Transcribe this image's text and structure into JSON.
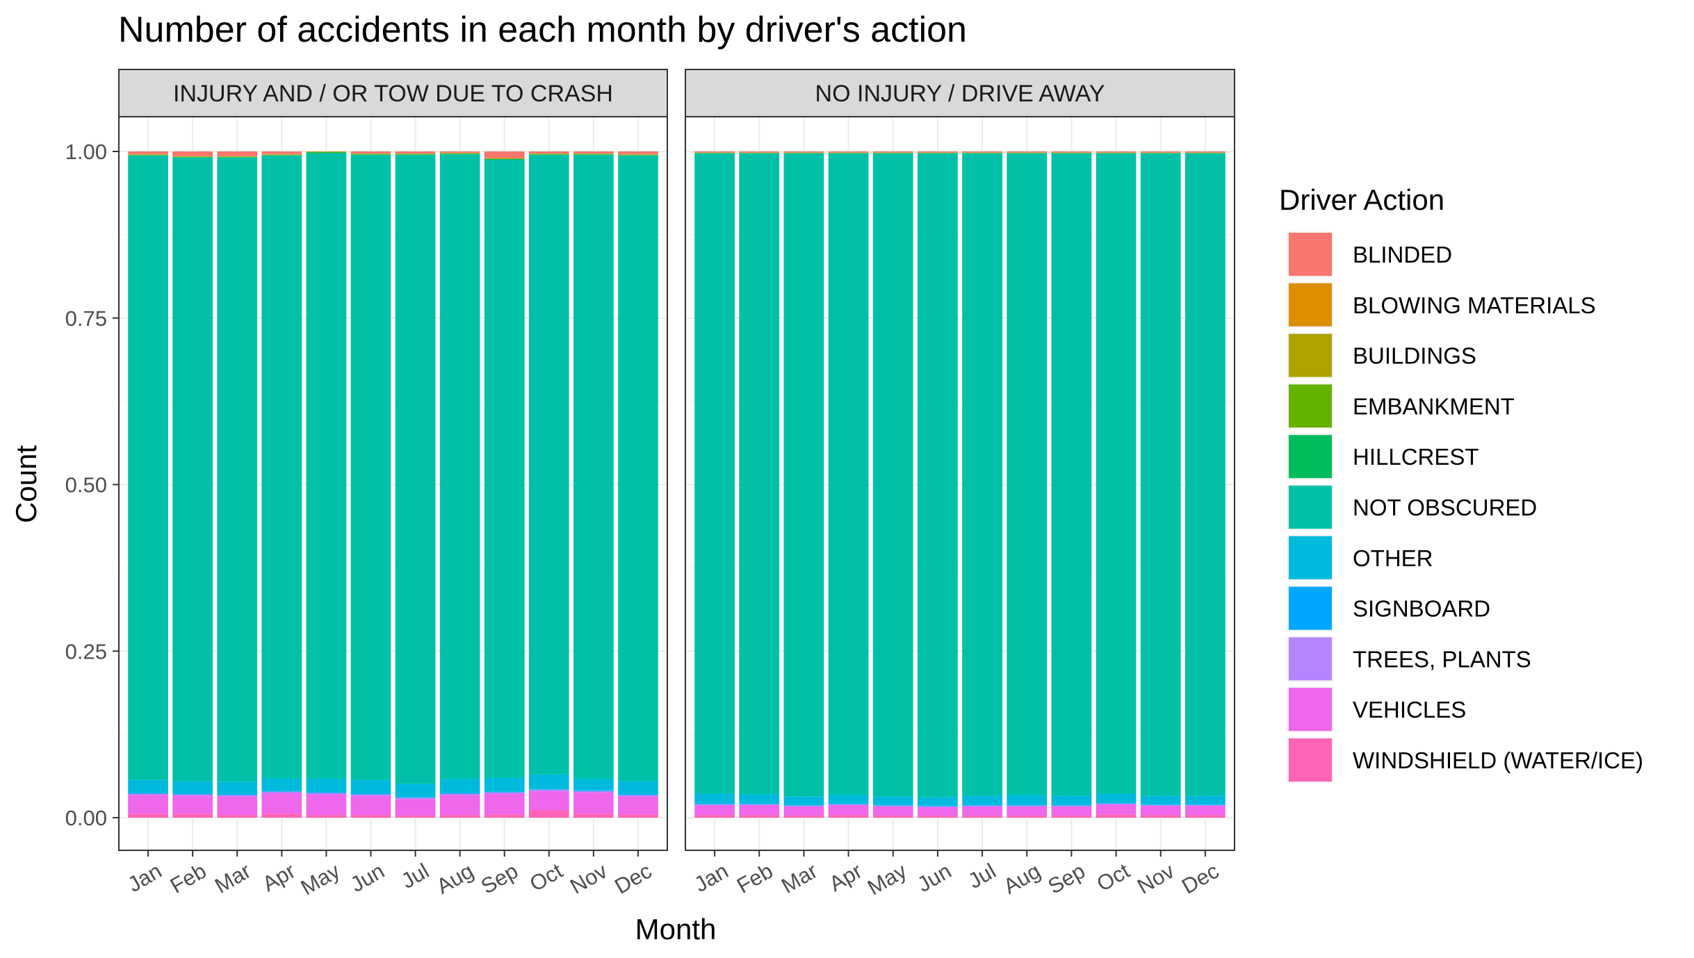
{
  "chart_data": {
    "type": "bar",
    "stacked": true,
    "position": "fill",
    "title": "Number of accidents in each month by driver's action",
    "xlabel": "Month",
    "ylabel": "Count",
    "ylim": [
      0,
      1
    ],
    "yticks": [
      "0.00",
      "0.25",
      "0.50",
      "0.75",
      "1.00"
    ],
    "ytick_values": [
      0,
      0.25,
      0.5,
      0.75,
      1.0
    ],
    "categories": [
      "Jan",
      "Feb",
      "Mar",
      "Apr",
      "May",
      "Jun",
      "Jul",
      "Aug",
      "Sep",
      "Oct",
      "Nov",
      "Dec"
    ],
    "legend": {
      "title": "Driver Action",
      "placement": "right",
      "entries": [
        "BLINDED",
        "BLOWING MATERIALS",
        "BUILDINGS",
        "EMBANKMENT",
        "HILLCREST",
        "NOT OBSCURED",
        "OTHER",
        "SIGNBOARD",
        "TREES, PLANTS",
        "VEHICLES",
        "WINDSHIELD (WATER/ICE)"
      ]
    },
    "colors": {
      "BLINDED": "#F8766D",
      "BLOWING MATERIALS": "#DB8E00",
      "BUILDINGS": "#AEA200",
      "EMBANKMENT": "#64B200",
      "HILLCREST": "#00BD5C",
      "NOT OBSCURED": "#00C1A7",
      "OTHER": "#00BADE",
      "SIGNBOARD": "#00A6FF",
      "TREES, PLANTS": "#B385FF",
      "VEHICLES": "#EF67EB",
      "WINDSHIELD (WATER/ICE)": "#FF63B6"
    },
    "panels": [
      {
        "label": "INJURY AND / OR TOW DUE TO CRASH",
        "series": [
          {
            "name": "WINDSHIELD (WATER/ICE)",
            "values": [
              0.006,
              0.006,
              0.004,
              0.006,
              0.004,
              0.004,
              0.003,
              0.004,
              0.005,
              0.011,
              0.006,
              0.005
            ]
          },
          {
            "name": "VEHICLES",
            "values": [
              0.028,
              0.027,
              0.028,
              0.031,
              0.031,
              0.029,
              0.025,
              0.03,
              0.031,
              0.029,
              0.032,
              0.027
            ]
          },
          {
            "name": "TREES, PLANTS",
            "values": [
              0.002,
              0.002,
              0.002,
              0.002,
              0.002,
              0.002,
              0.002,
              0.002,
              0.002,
              0.002,
              0.002,
              0.002
            ]
          },
          {
            "name": "SIGNBOARD",
            "values": [
              0.001,
              0.001,
              0.001,
              0.001,
              0.001,
              0.001,
              0.001,
              0.001,
              0.001,
              0.001,
              0.001,
              0.001
            ]
          },
          {
            "name": "OTHER",
            "values": [
              0.02,
              0.019,
              0.019,
              0.019,
              0.021,
              0.021,
              0.02,
              0.021,
              0.021,
              0.022,
              0.017,
              0.02
            ]
          },
          {
            "name": "NOT OBSCURED",
            "values": [
              0.937,
              0.937,
              0.938,
              0.936,
              0.939,
              0.939,
              0.945,
              0.938,
              0.929,
              0.931,
              0.938,
              0.94
            ]
          },
          {
            "name": "HILLCREST",
            "values": [
              0.001,
              0.001,
              0.001,
              0.001,
              0.001,
              0.001,
              0.001,
              0.001,
              0.001,
              0.001,
              0.001,
              0.001
            ]
          },
          {
            "name": "EMBANKMENT",
            "values": [
              0.0005,
              0.0005,
              0.0005,
              0.0005,
              0.0005,
              0.0005,
              0.0005,
              0.0005,
              0.0005,
              0.0005,
              0.0005,
              0.0005
            ]
          },
          {
            "name": "BUILDINGS",
            "values": [
              0.0005,
              0.0005,
              0.0005,
              0.0005,
              0.0005,
              0.0005,
              0.0005,
              0.0005,
              0.0005,
              0.0005,
              0.0005,
              0.0005
            ]
          },
          {
            "name": "BLOWING MATERIALS",
            "values": [
              0.0005,
              0.0005,
              0.0005,
              0.0005,
              0.0005,
              0.0005,
              0.0005,
              0.0005,
              0.0005,
              0.0005,
              0.0005,
              0.0005
            ]
          },
          {
            "name": "BLINDED",
            "values": [
              0.004,
              0.007,
              0.007,
              0.004,
              0.0,
              0.003,
              0.003,
              0.002,
              0.01,
              0.003,
              0.003,
              0.004
            ]
          }
        ]
      },
      {
        "label": "NO INJURY / DRIVE AWAY",
        "series": [
          {
            "name": "WINDSHIELD (WATER/ICE)",
            "values": [
              0.004,
              0.004,
              0.003,
              0.004,
              0.003,
              0.003,
              0.003,
              0.003,
              0.003,
              0.005,
              0.004,
              0.004
            ]
          },
          {
            "name": "VEHICLES",
            "values": [
              0.015,
              0.015,
              0.014,
              0.015,
              0.014,
              0.013,
              0.014,
              0.014,
              0.014,
              0.015,
              0.014,
              0.014
            ]
          },
          {
            "name": "TREES, PLANTS",
            "values": [
              0.001,
              0.001,
              0.001,
              0.001,
              0.001,
              0.001,
              0.001,
              0.001,
              0.001,
              0.001,
              0.001,
              0.001
            ]
          },
          {
            "name": "SIGNBOARD",
            "values": [
              0.001,
              0.001,
              0.001,
              0.001,
              0.001,
              0.001,
              0.001,
              0.001,
              0.001,
              0.001,
              0.001,
              0.001
            ]
          },
          {
            "name": "OTHER",
            "values": [
              0.015,
              0.014,
              0.013,
              0.013,
              0.013,
              0.013,
              0.014,
              0.015,
              0.014,
              0.014,
              0.013,
              0.013
            ]
          },
          {
            "name": "NOT OBSCURED",
            "values": [
              0.961,
              0.962,
              0.965,
              0.964,
              0.967,
              0.967,
              0.966,
              0.964,
              0.965,
              0.962,
              0.965,
              0.965
            ]
          },
          {
            "name": "HILLCREST",
            "values": [
              0.0005,
              0.0005,
              0.0005,
              0.0005,
              0.0005,
              0.0005,
              0.0005,
              0.0005,
              0.0005,
              0.0005,
              0.0005,
              0.0005
            ]
          },
          {
            "name": "EMBANKMENT",
            "values": [
              0.0003,
              0.0003,
              0.0003,
              0.0003,
              0.0003,
              0.0003,
              0.0003,
              0.0003,
              0.0003,
              0.0003,
              0.0003,
              0.0003
            ]
          },
          {
            "name": "BUILDINGS",
            "values": [
              0.0003,
              0.0003,
              0.0003,
              0.0003,
              0.0003,
              0.0003,
              0.0003,
              0.0003,
              0.0003,
              0.0003,
              0.0003,
              0.0003
            ]
          },
          {
            "name": "BLOWING MATERIALS",
            "values": [
              0.0003,
              0.0003,
              0.0003,
              0.0003,
              0.0003,
              0.0003,
              0.0003,
              0.0003,
              0.0003,
              0.0003,
              0.0003,
              0.0003
            ]
          },
          {
            "name": "BLINDED",
            "values": [
              0.0016,
              0.0016,
              0.0016,
              0.0016,
              0.0016,
              0.0016,
              0.0016,
              0.0016,
              0.0016,
              0.0016,
              0.0016,
              0.0016
            ]
          }
        ]
      }
    ]
  }
}
